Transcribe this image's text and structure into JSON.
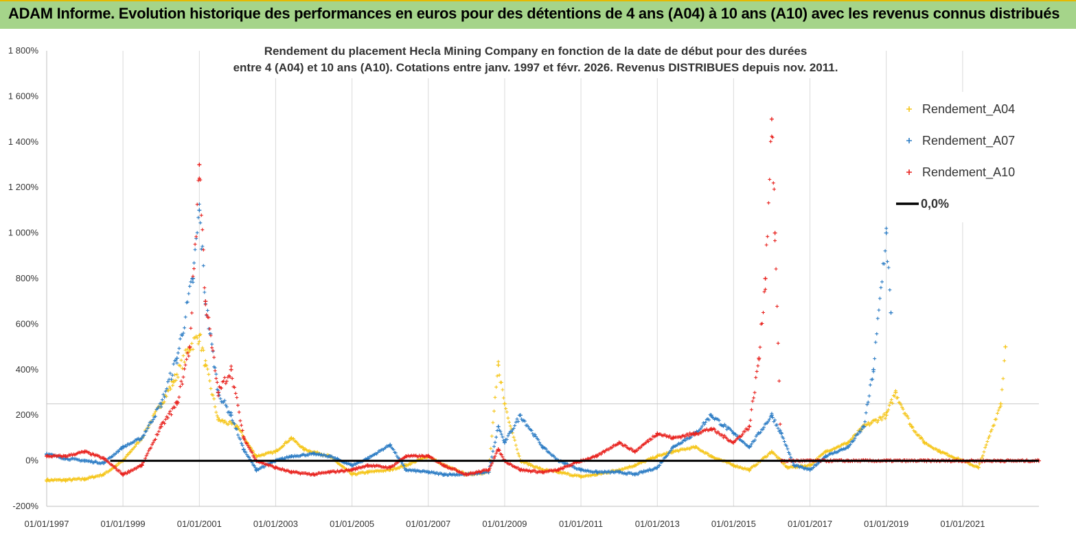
{
  "header": {
    "title": "ADAM Informe. Evolution historique des performances en euros pour des détentions de 4 ans (A04) à 10 ans (A10) avec les revenus connus distribués"
  },
  "chart_data": {
    "type": "scatter",
    "subtitle_line1": "Rendement du placement Hecla Mining Company en fonction de la date de début pour des durées",
    "subtitle_line2": "entre 4 (A04) et 10 ans (A10).  Cotations entre janv. 1997 et févr. 2026. Revenus DISTRIBUES depuis nov. 2011.",
    "x_range": [
      "1997-01-01",
      "2023-01-01"
    ],
    "y_range": [
      -200,
      1800
    ],
    "x_ticks": [
      "01/01/1997",
      "01/01/1999",
      "01/01/2001",
      "01/01/2003",
      "01/01/2005",
      "01/01/2007",
      "01/01/2009",
      "01/01/2011",
      "01/01/2013",
      "01/01/2015",
      "01/01/2017",
      "01/01/2019",
      "01/01/2021"
    ],
    "y_ticks": [
      "-200%",
      "0%",
      "200%",
      "400%",
      "600%",
      "800%",
      "1 000%",
      "1 200%",
      "1 400%",
      "1 600%",
      "1 800%"
    ],
    "y_tick_values": [
      -200,
      0,
      200,
      400,
      600,
      800,
      1000,
      1200,
      1400,
      1600,
      1800
    ],
    "grid": "vertical",
    "legend_position": "top-right",
    "series": [
      {
        "name": "Rendement_A04",
        "color": "#f5c518",
        "marker": "+",
        "points": [
          [
            "1997-01-01",
            -85
          ],
          [
            "1997-07-01",
            -85
          ],
          [
            "1998-01-01",
            -80
          ],
          [
            "1998-07-01",
            -60
          ],
          [
            "1999-01-01",
            0
          ],
          [
            "1999-07-01",
            100
          ],
          [
            "2000-01-01",
            250
          ],
          [
            "2000-05-01",
            350
          ],
          [
            "2000-10-01",
            500
          ],
          [
            "2001-01-01",
            550
          ],
          [
            "2001-03-01",
            420
          ],
          [
            "2001-07-01",
            180
          ],
          [
            "2002-01-01",
            150
          ],
          [
            "2002-04-01",
            80
          ],
          [
            "2002-07-01",
            20
          ],
          [
            "2003-01-01",
            40
          ],
          [
            "2003-06-01",
            100
          ],
          [
            "2003-10-01",
            50
          ],
          [
            "2004-06-01",
            20
          ],
          [
            "2005-01-01",
            -60
          ],
          [
            "2005-06-01",
            -50
          ],
          [
            "2006-01-01",
            -40
          ],
          [
            "2006-06-01",
            -20
          ],
          [
            "2007-01-01",
            20
          ],
          [
            "2007-06-01",
            -20
          ],
          [
            "2008-01-01",
            -60
          ],
          [
            "2008-08-01",
            -50
          ],
          [
            "2008-11-01",
            420
          ],
          [
            "2009-01-01",
            250
          ],
          [
            "2009-06-01",
            0
          ],
          [
            "2010-01-01",
            -40
          ],
          [
            "2010-06-01",
            -50
          ],
          [
            "2011-01-01",
            -70
          ],
          [
            "2011-06-01",
            -60
          ],
          [
            "2012-01-01",
            -40
          ],
          [
            "2012-06-01",
            -20
          ],
          [
            "2013-01-01",
            20
          ],
          [
            "2013-06-01",
            40
          ],
          [
            "2014-01-01",
            60
          ],
          [
            "2014-06-01",
            20
          ],
          [
            "2015-01-01",
            -20
          ],
          [
            "2015-06-01",
            -40
          ],
          [
            "2016-01-01",
            40
          ],
          [
            "2016-06-01",
            -30
          ],
          [
            "2017-01-01",
            -20
          ],
          [
            "2017-06-01",
            40
          ],
          [
            "2018-01-01",
            80
          ],
          [
            "2018-06-01",
            150
          ],
          [
            "2019-01-01",
            200
          ],
          [
            "2019-04-01",
            300
          ],
          [
            "2019-09-01",
            150
          ],
          [
            "2020-01-01",
            80
          ],
          [
            "2020-06-01",
            40
          ],
          [
            "2021-01-01",
            0
          ],
          [
            "2021-06-01",
            -30
          ],
          [
            "2022-01-01",
            250
          ],
          [
            "2022-02-15",
            500
          ]
        ]
      },
      {
        "name": "Rendement_A07",
        "color": "#2a7bc4",
        "marker": "+",
        "points": [
          [
            "1997-01-01",
            30
          ],
          [
            "1997-07-01",
            10
          ],
          [
            "1998-01-01",
            0
          ],
          [
            "1998-07-01",
            -10
          ],
          [
            "1999-01-01",
            60
          ],
          [
            "1999-07-01",
            100
          ],
          [
            "2000-01-01",
            250
          ],
          [
            "2000-06-01",
            450
          ],
          [
            "2000-11-01",
            800
          ],
          [
            "2001-01-01",
            1100
          ],
          [
            "2001-03-01",
            700
          ],
          [
            "2001-07-01",
            300
          ],
          [
            "2001-11-01",
            200
          ],
          [
            "2002-03-01",
            50
          ],
          [
            "2002-07-01",
            -40
          ],
          [
            "2003-01-01",
            0
          ],
          [
            "2003-06-01",
            20
          ],
          [
            "2004-01-01",
            30
          ],
          [
            "2004-06-01",
            20
          ],
          [
            "2005-01-01",
            -20
          ],
          [
            "2005-06-01",
            10
          ],
          [
            "2006-01-01",
            70
          ],
          [
            "2006-06-01",
            -40
          ],
          [
            "2007-01-01",
            -50
          ],
          [
            "2007-06-01",
            -60
          ],
          [
            "2008-01-01",
            -60
          ],
          [
            "2008-08-01",
            -50
          ],
          [
            "2008-11-01",
            150
          ],
          [
            "2009-01-01",
            80
          ],
          [
            "2009-06-01",
            200
          ],
          [
            "2010-01-01",
            60
          ],
          [
            "2010-06-01",
            0
          ],
          [
            "2011-01-01",
            -40
          ],
          [
            "2011-06-01",
            -50
          ],
          [
            "2012-01-01",
            -50
          ],
          [
            "2012-06-01",
            -60
          ],
          [
            "2013-01-01",
            -30
          ],
          [
            "2013-06-01",
            60
          ],
          [
            "2014-01-01",
            120
          ],
          [
            "2014-06-01",
            200
          ],
          [
            "2015-01-01",
            120
          ],
          [
            "2015-06-01",
            60
          ],
          [
            "2016-01-01",
            200
          ],
          [
            "2016-04-01",
            120
          ],
          [
            "2016-08-01",
            -20
          ],
          [
            "2017-01-01",
            -40
          ],
          [
            "2017-06-01",
            20
          ],
          [
            "2018-01-01",
            60
          ],
          [
            "2018-06-01",
            150
          ],
          [
            "2018-09-01",
            400
          ],
          [
            "2019-01-01",
            1000
          ],
          [
            "2019-02-15",
            650
          ]
        ]
      },
      {
        "name": "Rendement_A10",
        "color": "#e8211d",
        "marker": "+",
        "points": [
          [
            "1997-01-01",
            20
          ],
          [
            "1997-07-01",
            20
          ],
          [
            "1998-01-01",
            40
          ],
          [
            "1998-07-01",
            10
          ],
          [
            "1999-01-01",
            -60
          ],
          [
            "1999-07-01",
            -20
          ],
          [
            "2000-01-01",
            150
          ],
          [
            "2000-06-01",
            250
          ],
          [
            "2000-10-01",
            500
          ],
          [
            "2001-01-01",
            1300
          ],
          [
            "2001-03-01",
            700
          ],
          [
            "2001-07-01",
            300
          ],
          [
            "2001-11-01",
            400
          ],
          [
            "2002-03-01",
            100
          ],
          [
            "2002-07-01",
            0
          ],
          [
            "2003-01-01",
            -30
          ],
          [
            "2003-06-01",
            -50
          ],
          [
            "2004-01-01",
            -60
          ],
          [
            "2004-06-01",
            -50
          ],
          [
            "2005-01-01",
            -40
          ],
          [
            "2005-06-01",
            -20
          ],
          [
            "2006-01-01",
            -30
          ],
          [
            "2006-06-01",
            20
          ],
          [
            "2007-01-01",
            20
          ],
          [
            "2007-06-01",
            -20
          ],
          [
            "2008-01-01",
            -60
          ],
          [
            "2008-08-01",
            -40
          ],
          [
            "2008-11-01",
            50
          ],
          [
            "2009-01-01",
            0
          ],
          [
            "2009-06-01",
            -40
          ],
          [
            "2010-01-01",
            -50
          ],
          [
            "2010-06-01",
            -40
          ],
          [
            "2011-01-01",
            0
          ],
          [
            "2011-06-01",
            20
          ],
          [
            "2012-01-01",
            80
          ],
          [
            "2012-06-01",
            40
          ],
          [
            "2013-01-01",
            120
          ],
          [
            "2013-06-01",
            100
          ],
          [
            "2014-01-01",
            120
          ],
          [
            "2014-06-01",
            140
          ],
          [
            "2015-01-01",
            80
          ],
          [
            "2015-06-01",
            150
          ],
          [
            "2015-09-01",
            450
          ],
          [
            "2015-11-01",
            800
          ],
          [
            "2016-01-01",
            1500
          ],
          [
            "2016-02-01",
            1000
          ],
          [
            "2016-04-01",
            0
          ],
          [
            "2017-01-01",
            0
          ],
          [
            "2018-01-01",
            0
          ],
          [
            "2019-01-01",
            0
          ],
          [
            "2020-01-01",
            0
          ],
          [
            "2021-01-01",
            0
          ],
          [
            "2022-01-01",
            0
          ],
          [
            "2022-12-31",
            0
          ]
        ]
      }
    ],
    "reference_line": {
      "name": "0,0%",
      "value": 0,
      "color": "#000000"
    }
  }
}
